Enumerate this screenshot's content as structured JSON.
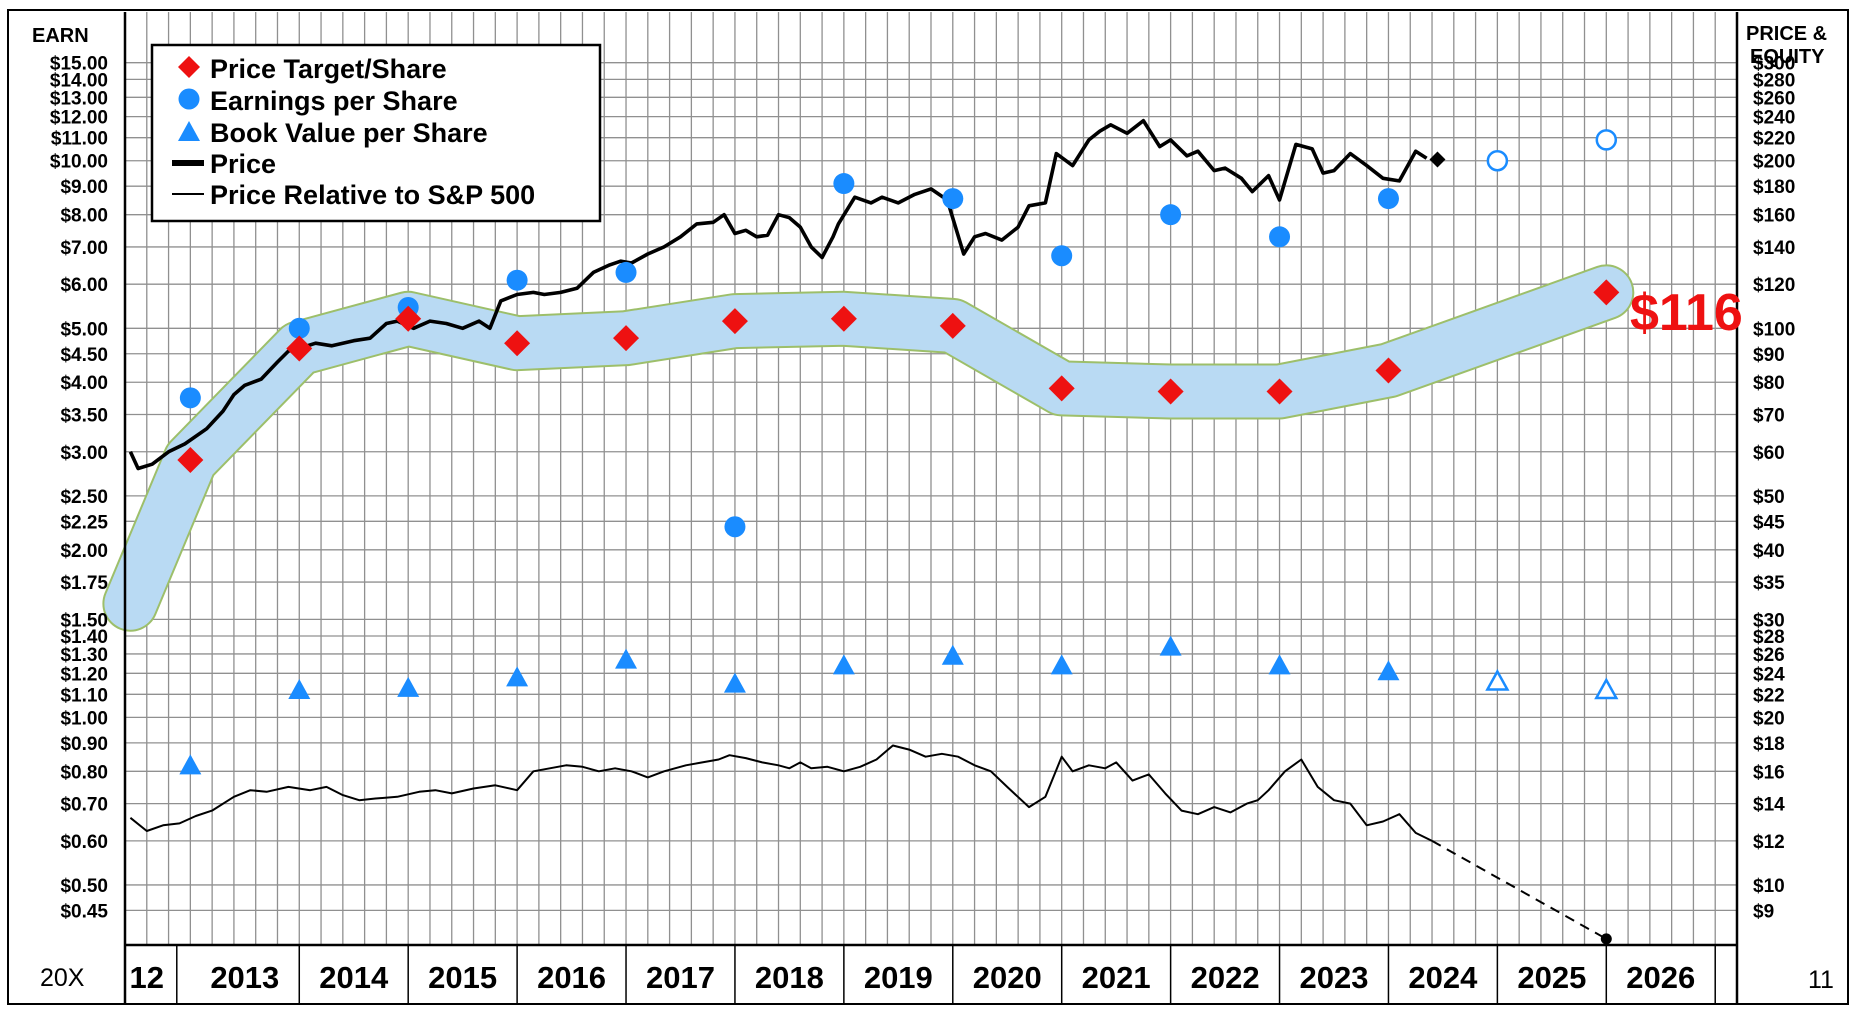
{
  "chart_data": {
    "type": "line",
    "left_axis_title": "EARN",
    "right_axis_title_1": "PRICE &",
    "right_axis_title_2": "EQUITY",
    "corner_left": "20X",
    "corner_right": "11",
    "target_callout": "$116",
    "x_axis": {
      "range": [
        2012.0,
        2026.8
      ],
      "first_label": "12",
      "year_labels": [
        "2013",
        "2014",
        "2015",
        "2016",
        "2017",
        "2018",
        "2019",
        "2020",
        "2021",
        "2022",
        "2023",
        "2024",
        "2025",
        "2026"
      ]
    },
    "y_axis": {
      "scale": "log",
      "earnings_range": [
        0.39,
        18.5
      ],
      "price_to_earnings_ratio": 20,
      "left_ticks": [
        "$15.00",
        "$14.00",
        "$13.00",
        "$12.00",
        "$11.00",
        "$10.00",
        "$9.00",
        "$8.00",
        "$7.00",
        "$6.00",
        "$5.00",
        "$4.50",
        "$4.00",
        "$3.50",
        "$3.00",
        "$2.50",
        "$2.25",
        "$2.00",
        "$1.75",
        "$1.50",
        "$1.40",
        "$1.30",
        "$1.20",
        "$1.10",
        "$1.00",
        "$0.90",
        "$0.80",
        "$0.70",
        "$0.60",
        "$0.50",
        "$0.45"
      ],
      "right_ticks": [
        "$300",
        "$280",
        "$260",
        "$240",
        "$220",
        "$200",
        "$180",
        "$160",
        "$140",
        "$120",
        "$100",
        "$90",
        "$80",
        "$70",
        "$60",
        "$50",
        "$45",
        "$40",
        "$35",
        "$30",
        "$28",
        "$26",
        "$24",
        "$22",
        "$20",
        "$18",
        "$16",
        "$14",
        "$12",
        "$10",
        "$9"
      ]
    },
    "legend": [
      {
        "name": "Price Target/Share",
        "marker": "diamond",
        "color": "#ee1111"
      },
      {
        "name": "Earnings per Share",
        "marker": "circle",
        "color": "#1a8cff"
      },
      {
        "name": "Book Value per Share",
        "marker": "triangle",
        "color": "#1a8cff"
      },
      {
        "name": "Price",
        "marker": "thick-line",
        "color": "#000000"
      },
      {
        "name": "Price Relative to S&P 500",
        "marker": "thin-line",
        "color": "#000000"
      }
    ],
    "series": [
      {
        "name": "Price Target/Share",
        "color": "#ee1111",
        "x": [
          2012.6,
          2013.6,
          2014.6,
          2015.6,
          2016.6,
          2017.6,
          2018.6,
          2019.6,
          2020.6,
          2021.6,
          2022.6,
          2023.6,
          2025.6
        ],
        "values": [
          2.9,
          4.6,
          5.2,
          4.7,
          4.8,
          5.15,
          5.2,
          5.05,
          3.9,
          3.85,
          3.85,
          4.2,
          5.8
        ]
      },
      {
        "name": "Earnings per Share",
        "color": "#1a8cff",
        "x": [
          2012.6,
          2013.6,
          2014.6,
          2015.6,
          2016.6,
          2017.6,
          2018.6,
          2019.6,
          2020.6,
          2021.6,
          2022.6,
          2023.6
        ],
        "values": [
          3.75,
          5.0,
          5.45,
          6.1,
          6.3,
          2.2,
          9.1,
          8.55,
          6.75,
          8.0,
          7.3,
          8.55
        ],
        "projected_x": [
          2024.6,
          2025.6
        ],
        "projected_values": [
          10.0,
          10.9
        ]
      },
      {
        "name": "Book Value per Share",
        "color": "#1a8cff",
        "x": [
          2012.6,
          2013.6,
          2014.6,
          2015.6,
          2016.6,
          2017.6,
          2018.6,
          2019.6,
          2020.6,
          2021.6,
          2022.6,
          2023.6
        ],
        "values": [
          0.82,
          1.12,
          1.13,
          1.18,
          1.27,
          1.15,
          1.24,
          1.29,
          1.24,
          1.34,
          1.24,
          1.21
        ],
        "projected_x": [
          2024.6,
          2025.6
        ],
        "projected_values": [
          1.16,
          1.12
        ]
      },
      {
        "name": "Price (EPS-equivalent, price = value x 20)",
        "color": "#000000",
        "x": [
          2012.05,
          2012.12,
          2012.25,
          2012.4,
          2012.55,
          2012.75,
          2012.9,
          2013.0,
          2013.1,
          2013.25,
          2013.4,
          2013.5,
          2013.6,
          2013.75,
          2013.9,
          2014.1,
          2014.25,
          2014.4,
          2014.5,
          2014.65,
          2014.8,
          2014.95,
          2015.1,
          2015.25,
          2015.35,
          2015.45,
          2015.6,
          2015.75,
          2015.85,
          2016.0,
          2016.15,
          2016.3,
          2016.45,
          2016.55,
          2016.65,
          2016.8,
          2016.95,
          2017.1,
          2017.25,
          2017.4,
          2017.5,
          2017.6,
          2017.7,
          2017.8,
          2017.9,
          2018.0,
          2018.1,
          2018.2,
          2018.3,
          2018.4,
          2018.5,
          2018.55,
          2018.7,
          2018.85,
          2018.95,
          2019.1,
          2019.25,
          2019.4,
          2019.55,
          2019.7,
          2019.8,
          2019.9,
          2020.05,
          2020.2,
          2020.3,
          2020.45,
          2020.55,
          2020.7,
          2020.85,
          2020.95,
          2021.05,
          2021.2,
          2021.35,
          2021.5,
          2021.6,
          2021.75,
          2021.85,
          2022.0,
          2022.1,
          2022.25,
          2022.35,
          2022.5,
          2022.6,
          2022.75,
          2022.9,
          2023.0,
          2023.1,
          2023.25,
          2023.4,
          2023.55,
          2023.7,
          2023.85,
          2023.95
        ],
        "values": [
          3.0,
          2.8,
          2.85,
          3.0,
          3.1,
          3.3,
          3.55,
          3.8,
          3.95,
          4.05,
          4.35,
          4.55,
          4.6,
          4.7,
          4.65,
          4.75,
          4.8,
          5.1,
          5.15,
          5.0,
          5.15,
          5.1,
          5.0,
          5.15,
          5.0,
          5.6,
          5.75,
          5.8,
          5.75,
          5.8,
          5.9,
          6.3,
          6.5,
          6.6,
          6.55,
          6.8,
          7.0,
          7.3,
          7.7,
          7.75,
          8.0,
          7.4,
          7.5,
          7.3,
          7.35,
          8.0,
          7.9,
          7.6,
          7.0,
          6.7,
          7.3,
          7.7,
          8.6,
          8.4,
          8.6,
          8.4,
          8.7,
          8.9,
          8.5,
          6.8,
          7.3,
          7.4,
          7.2,
          7.6,
          8.3,
          8.4,
          10.3,
          9.8,
          10.9,
          11.3,
          11.6,
          11.2,
          11.8,
          10.6,
          10.9,
          10.2,
          10.4,
          9.6,
          9.7,
          9.3,
          8.8,
          9.4,
          8.5,
          10.7,
          10.5,
          9.5,
          9.6,
          10.3,
          9.8,
          9.3,
          9.2,
          10.4,
          10.1
        ],
        "last_price_marker": {
          "x": 2024.05,
          "value": 10.05
        }
      },
      {
        "name": "Price Relative to S&P 500 (left-scale equivalent)",
        "color": "#000000",
        "x": [
          2012.05,
          2012.2,
          2012.35,
          2012.5,
          2012.65,
          2012.8,
          2013.0,
          2013.15,
          2013.3,
          2013.5,
          2013.7,
          2013.85,
          2014.0,
          2014.15,
          2014.3,
          2014.5,
          2014.7,
          2014.85,
          2015.0,
          2015.2,
          2015.4,
          2015.6,
          2015.75,
          2015.9,
          2016.05,
          2016.2,
          2016.35,
          2016.5,
          2016.65,
          2016.8,
          2016.95,
          2017.15,
          2017.3,
          2017.45,
          2017.55,
          2017.7,
          2017.85,
          2018.0,
          2018.1,
          2018.2,
          2018.3,
          2018.45,
          2018.6,
          2018.75,
          2018.9,
          2019.05,
          2019.2,
          2019.35,
          2019.5,
          2019.65,
          2019.8,
          2019.95,
          2020.1,
          2020.3,
          2020.45,
          2020.6,
          2020.7,
          2020.85,
          2021.0,
          2021.1,
          2021.25,
          2021.4,
          2021.55,
          2021.7,
          2021.85,
          2022.0,
          2022.15,
          2022.3,
          2022.4,
          2022.5,
          2022.65,
          2022.8,
          2022.95,
          2023.1,
          2023.25,
          2023.4,
          2023.55,
          2023.7,
          2023.85,
          2024.0
        ],
        "values": [
          0.66,
          0.625,
          0.64,
          0.645,
          0.665,
          0.68,
          0.72,
          0.74,
          0.735,
          0.75,
          0.74,
          0.75,
          0.725,
          0.71,
          0.715,
          0.72,
          0.735,
          0.74,
          0.73,
          0.745,
          0.755,
          0.74,
          0.8,
          0.81,
          0.82,
          0.815,
          0.8,
          0.81,
          0.8,
          0.78,
          0.8,
          0.82,
          0.83,
          0.84,
          0.855,
          0.845,
          0.83,
          0.82,
          0.81,
          0.83,
          0.81,
          0.815,
          0.8,
          0.815,
          0.84,
          0.89,
          0.875,
          0.85,
          0.86,
          0.85,
          0.82,
          0.8,
          0.75,
          0.69,
          0.72,
          0.85,
          0.8,
          0.82,
          0.81,
          0.83,
          0.77,
          0.79,
          0.73,
          0.68,
          0.67,
          0.69,
          0.675,
          0.7,
          0.71,
          0.74,
          0.8,
          0.84,
          0.75,
          0.71,
          0.7,
          0.64,
          0.65,
          0.67,
          0.62,
          0.6
        ],
        "projection": {
          "x": [
            2024.0,
            2025.6
          ],
          "values": [
            0.6,
            0.4
          ]
        }
      }
    ]
  }
}
